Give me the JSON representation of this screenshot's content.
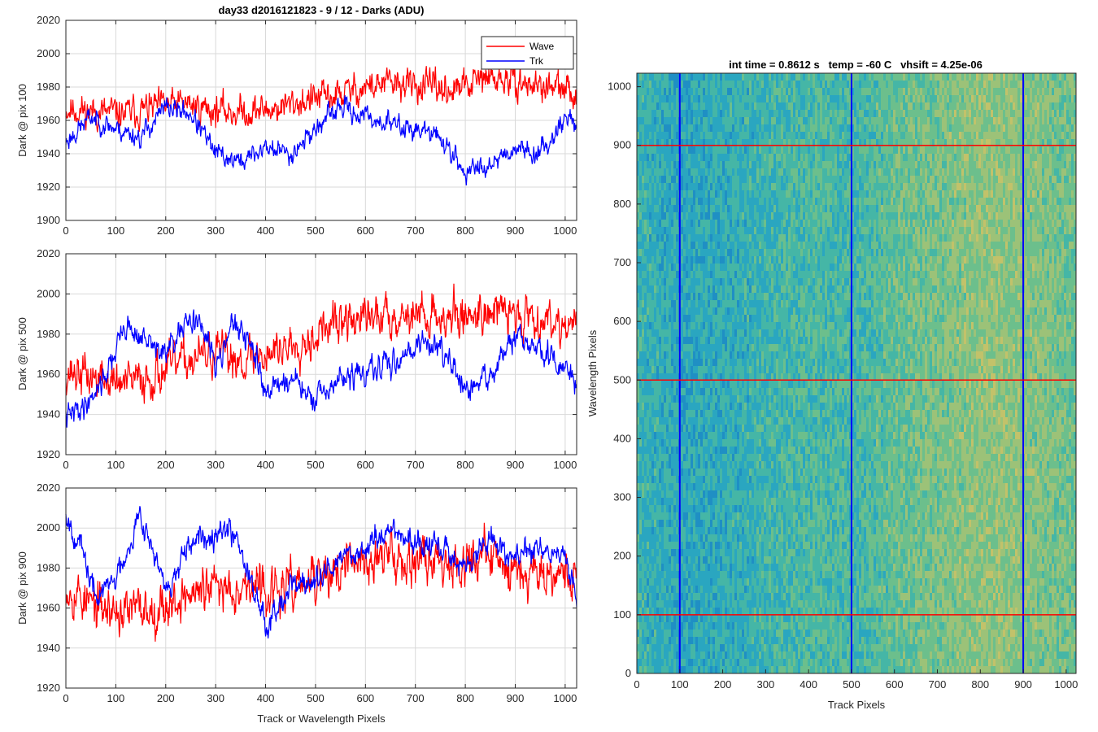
{
  "figure": {
    "suptitle": "day33 d2016121823 - 9 / 12 - Darks (ADU)",
    "colors": {
      "wave": "#ff0000",
      "trk": "#0000ff",
      "grid": "#d9d9d9",
      "axis": "#262626"
    }
  },
  "chart_data": [
    {
      "type": "line",
      "ylabel": "Dark @ pix 100",
      "xlabel": "",
      "xlim": [
        0,
        1023
      ],
      "ylim": [
        1900,
        2020
      ],
      "xticks": [
        "0",
        "100",
        "200",
        "300",
        "400",
        "500",
        "600",
        "700",
        "800",
        "900",
        "1000"
      ],
      "yticks": [
        "1900",
        "1920",
        "1940",
        "1960",
        "1980",
        "2000",
        "2020"
      ],
      "legend": {
        "position": "top-right",
        "entries": [
          "Wave",
          "Trk"
        ]
      },
      "series": [
        {
          "name": "Wave",
          "color": "#ff0000",
          "seed": 11,
          "noise": 9,
          "x": [
            0,
            60,
            120,
            180,
            240,
            300,
            360,
            420,
            480,
            540,
            600,
            660,
            720,
            780,
            840,
            900,
            960,
            1023
          ],
          "values": [
            1967,
            1965,
            1964,
            1968,
            1970,
            1966,
            1965,
            1967,
            1972,
            1975,
            1980,
            1982,
            1980,
            1978,
            1985,
            1983,
            1980,
            1976
          ]
        },
        {
          "name": "Trk",
          "color": "#0000ff",
          "seed": 23,
          "noise": 6,
          "x": [
            0,
            50,
            100,
            150,
            200,
            250,
            300,
            350,
            400,
            450,
            500,
            550,
            600,
            650,
            700,
            750,
            800,
            850,
            900,
            950,
            1000,
            1023
          ],
          "values": [
            1947,
            1962,
            1955,
            1950,
            1968,
            1964,
            1940,
            1935,
            1944,
            1940,
            1955,
            1968,
            1962,
            1958,
            1955,
            1950,
            1928,
            1935,
            1944,
            1940,
            1962,
            1958
          ]
        }
      ]
    },
    {
      "type": "line",
      "ylabel": "Dark @ pix 500",
      "xlabel": "",
      "xlim": [
        0,
        1023
      ],
      "ylim": [
        1920,
        2020
      ],
      "xticks": [
        "0",
        "100",
        "200",
        "300",
        "400",
        "500",
        "600",
        "700",
        "800",
        "900",
        "1000"
      ],
      "yticks": [
        "1920",
        "1940",
        "1960",
        "1980",
        "2000",
        "2020"
      ],
      "series": [
        {
          "name": "Wave",
          "color": "#ff0000",
          "seed": 37,
          "noise": 10,
          "x": [
            0,
            60,
            120,
            180,
            240,
            300,
            360,
            420,
            480,
            540,
            600,
            660,
            720,
            780,
            840,
            900,
            960,
            1023
          ],
          "values": [
            1962,
            1958,
            1955,
            1960,
            1967,
            1970,
            1968,
            1972,
            1978,
            1985,
            1988,
            1990,
            1990,
            1988,
            1992,
            1990,
            1988,
            1985
          ]
        },
        {
          "name": "Trk",
          "color": "#0000ff",
          "seed": 41,
          "noise": 6,
          "x": [
            0,
            40,
            80,
            120,
            150,
            200,
            260,
            300,
            330,
            370,
            400,
            450,
            500,
            550,
            600,
            650,
            700,
            750,
            800,
            850,
            900,
            950,
            1000,
            1023
          ],
          "values": [
            1938,
            1945,
            1960,
            1985,
            1978,
            1970,
            1990,
            1965,
            1985,
            1975,
            1952,
            1958,
            1946,
            1958,
            1960,
            1965,
            1975,
            1975,
            1950,
            1960,
            1978,
            1972,
            1962,
            1955
          ]
        }
      ]
    },
    {
      "type": "line",
      "ylabel": "Dark @ pix 900",
      "xlabel": "Track or Wavelength Pixels",
      "xlim": [
        0,
        1023
      ],
      "ylim": [
        1920,
        2020
      ],
      "xticks": [
        "0",
        "100",
        "200",
        "300",
        "400",
        "500",
        "600",
        "700",
        "800",
        "900",
        "1000"
      ],
      "yticks": [
        "1920",
        "1940",
        "1960",
        "1980",
        "2000",
        "2020"
      ],
      "series": [
        {
          "name": "Wave",
          "color": "#ff0000",
          "seed": 53,
          "noise": 11,
          "x": [
            0,
            60,
            120,
            180,
            240,
            300,
            360,
            420,
            480,
            540,
            600,
            660,
            720,
            780,
            840,
            900,
            960,
            1023
          ],
          "values": [
            1972,
            1960,
            1958,
            1960,
            1966,
            1970,
            1972,
            1968,
            1972,
            1978,
            1984,
            1986,
            1985,
            1984,
            1986,
            1980,
            1980,
            1976
          ]
        },
        {
          "name": "Trk",
          "color": "#0000ff",
          "seed": 67,
          "noise": 6,
          "x": [
            0,
            30,
            60,
            100,
            150,
            200,
            250,
            300,
            340,
            370,
            400,
            450,
            500,
            550,
            600,
            650,
            700,
            750,
            800,
            850,
            900,
            950,
            1000,
            1023
          ],
          "values": [
            2008,
            1990,
            1965,
            1975,
            2008,
            1968,
            1990,
            2000,
            1998,
            1975,
            1952,
            1972,
            1972,
            1985,
            1990,
            2000,
            1992,
            1990,
            1980,
            1995,
            1985,
            1990,
            1985,
            1965
          ]
        }
      ]
    },
    {
      "type": "heatmap",
      "title": "int time = 0.8612 s   temp = -60 C   vhsift = 4.25e-06",
      "xlabel": "Track Pixels",
      "ylabel": "Wavelength Pixels",
      "xlim": [
        0,
        1023
      ],
      "ylim": [
        0,
        1023
      ],
      "xticks": [
        "0",
        "100",
        "200",
        "300",
        "400",
        "500",
        "600",
        "700",
        "800",
        "900",
        "1000"
      ],
      "yticks": [
        "0",
        "100",
        "200",
        "300",
        "400",
        "500",
        "600",
        "700",
        "800",
        "900",
        "1000"
      ],
      "colormap": [
        "#1f8fc4",
        "#2aa6c0",
        "#45b6a6",
        "#6cbf8c",
        "#9cc278",
        "#c2c26a"
      ],
      "column_levels": {
        "x": [
          0,
          100,
          250,
          400,
          500,
          600,
          700,
          800,
          900,
          1023
        ],
        "values": [
          0.35,
          0.2,
          0.3,
          0.45,
          0.4,
          0.55,
          0.65,
          0.75,
          0.72,
          0.6
        ]
      },
      "markers": {
        "vertical_lines": {
          "color": "#0000ff",
          "x": [
            100,
            500,
            900
          ]
        },
        "horizontal_lines": {
          "color": "#ff0000",
          "y": [
            100,
            500,
            900
          ]
        }
      }
    }
  ]
}
